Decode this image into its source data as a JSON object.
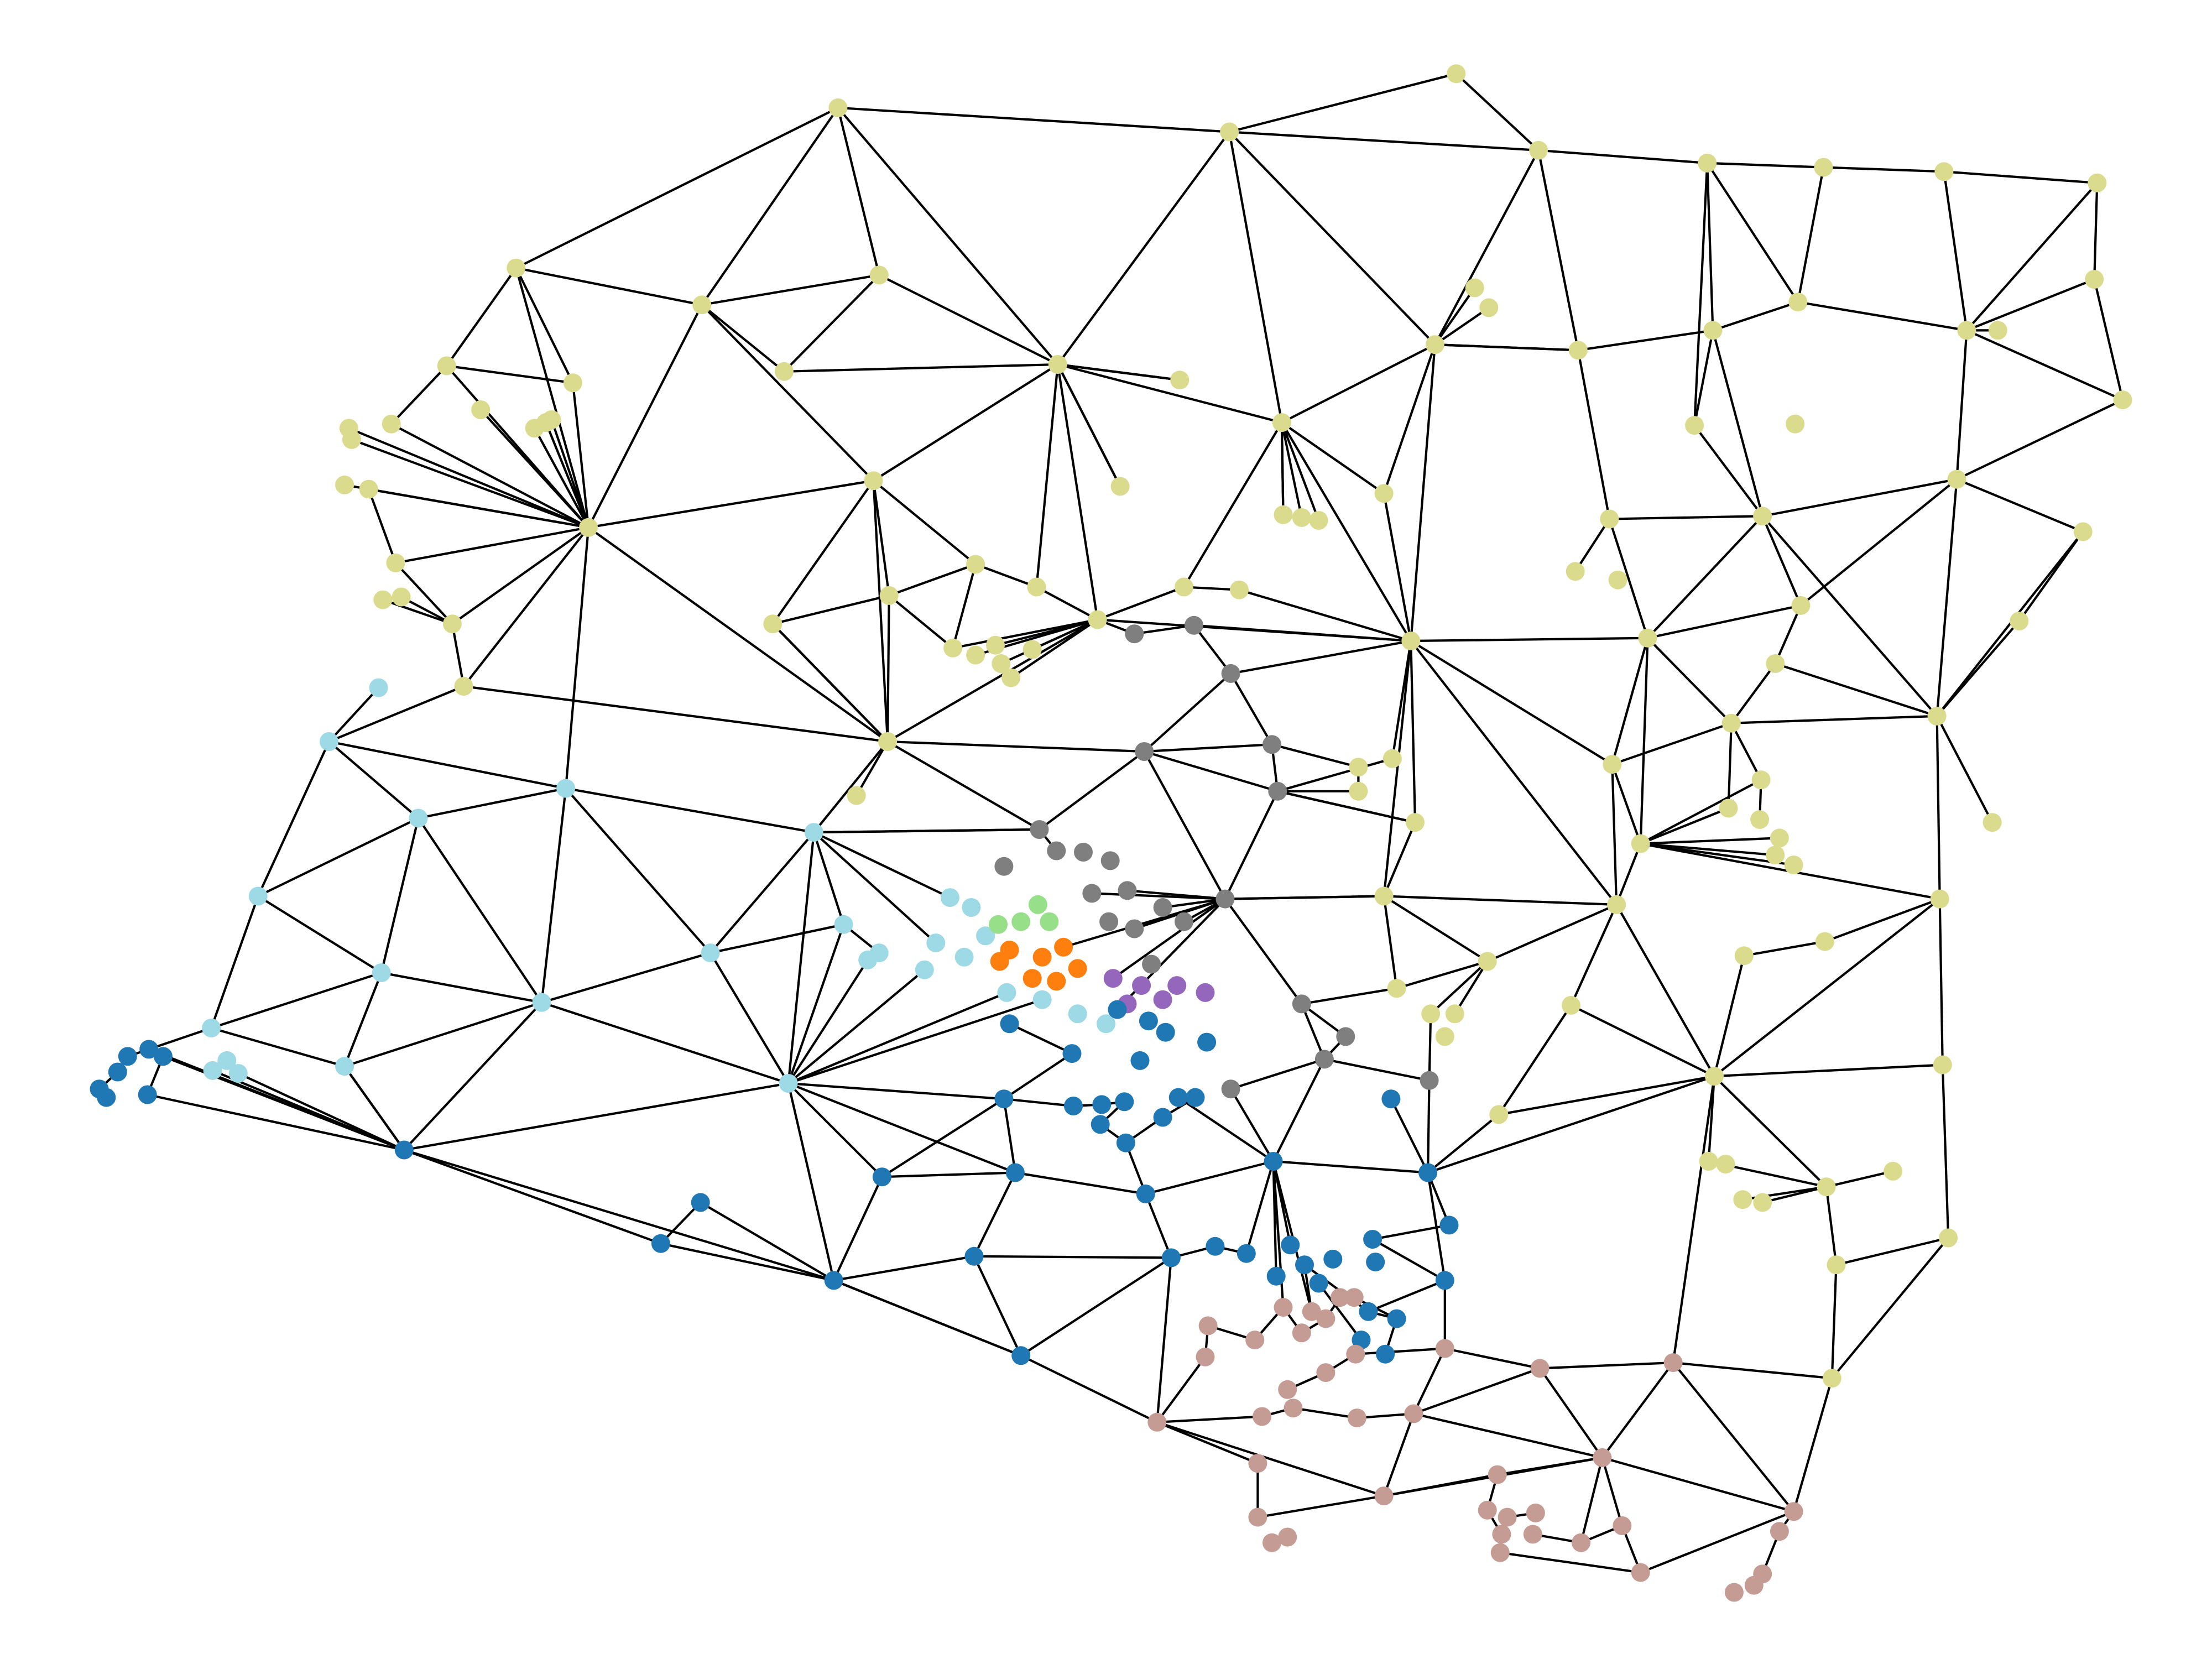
{
  "diagram": {
    "type": "network-graph",
    "title": "",
    "edge_color": "#000000",
    "background": "#ffffff",
    "communities": [
      {
        "name": "olive",
        "color": "#dbdb8d"
      },
      {
        "name": "light-blue",
        "color": "#9edae5"
      },
      {
        "name": "blue",
        "color": "#1f77b4"
      },
      {
        "name": "gray",
        "color": "#7f7f7f"
      },
      {
        "name": "light-green",
        "color": "#98df8a"
      },
      {
        "name": "orange",
        "color": "#ff7f0e"
      },
      {
        "name": "purple",
        "color": "#9467bd"
      },
      {
        "name": "rose",
        "color": "#c49c94"
      }
    ]
  }
}
